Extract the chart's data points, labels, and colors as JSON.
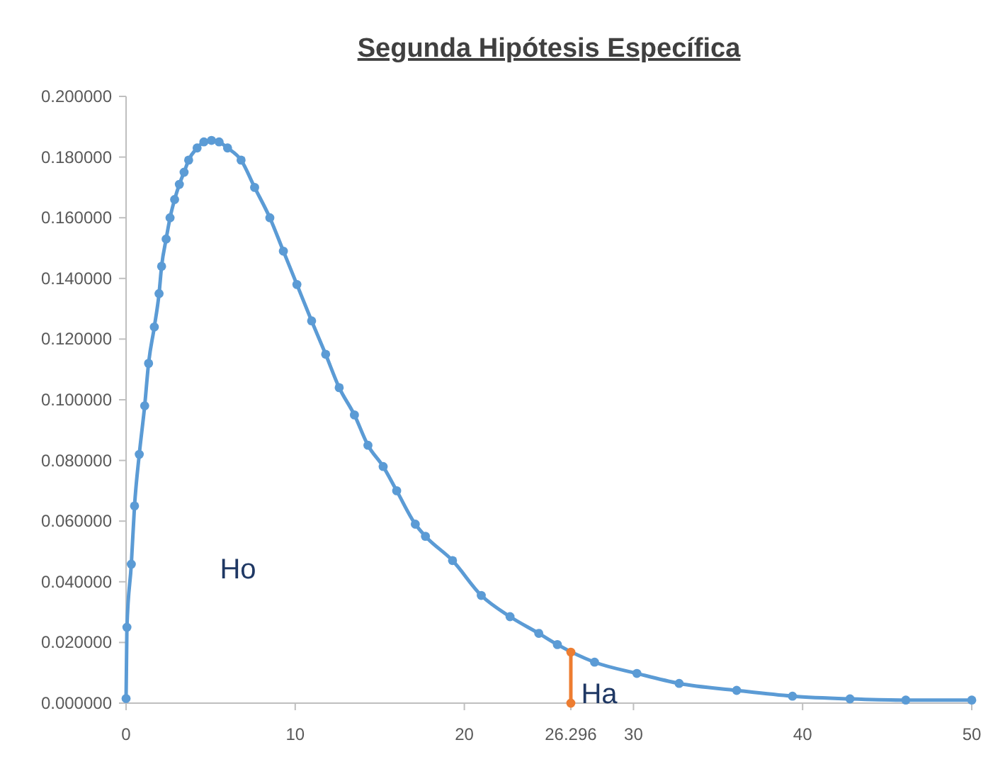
{
  "chart_data": {
    "type": "line",
    "title": "Segunda Hipótesis Específica",
    "marker": "circle",
    "grid": false,
    "xlim": [
      0,
      50
    ],
    "ylim": [
      0,
      0.2
    ],
    "xticks": [
      0,
      10,
      20,
      {
        "value": 26.296,
        "label": "26.296"
      },
      30,
      40,
      50
    ],
    "yticks": [
      {
        "value": 0,
        "label": "0.000000"
      },
      {
        "value": 0.02,
        "label": "0.020000"
      },
      {
        "value": 0.04,
        "label": "0.040000"
      },
      {
        "value": 0.06,
        "label": "0.060000"
      },
      {
        "value": 0.08,
        "label": "0.080000"
      },
      {
        "value": 0.1,
        "label": "0.100000"
      },
      {
        "value": 0.12,
        "label": "0.120000"
      },
      {
        "value": 0.14,
        "label": "0.140000"
      },
      {
        "value": 0.16,
        "label": "0.160000"
      },
      {
        "value": 0.18,
        "label": "0.180000"
      },
      {
        "value": 0.2,
        "label": "0.200000"
      }
    ],
    "series": [
      {
        "color": "#5b9bd5",
        "x": [
          0,
          0.05,
          0.31,
          0.5,
          0.78,
          1.1,
          1.33,
          1.67,
          1.95,
          2.1,
          2.37,
          2.6,
          2.87,
          3.15,
          3.43,
          3.7,
          4.2,
          4.6,
          5.05,
          5.5,
          6,
          6.8,
          7.6,
          8.5,
          9.3,
          10.1,
          10.97,
          11.8,
          12.6,
          13.5,
          14.3,
          15.2,
          16,
          17.1,
          17.7,
          19.3,
          21,
          22.7,
          24.4,
          25.5,
          27.7,
          30.2,
          32.7,
          36.1,
          39.4,
          42.8,
          46.1,
          50
        ],
        "values": [
          0.0015,
          0.025,
          0.0458,
          0.065,
          0.082,
          0.098,
          0.112,
          0.124,
          0.135,
          0.144,
          0.153,
          0.16,
          0.166,
          0.171,
          0.175,
          0.179,
          0.183,
          0.185,
          0.1855,
          0.185,
          0.183,
          0.179,
          0.17,
          0.16,
          0.149,
          0.138,
          0.126,
          0.115,
          0.104,
          0.095,
          0.085,
          0.078,
          0.07,
          0.059,
          0.055,
          0.047,
          0.0355,
          0.0285,
          0.023,
          0.0193,
          0.0135,
          0.0098,
          0.0065,
          0.0042,
          0.0023,
          0.0014,
          0.001,
          0.001
        ]
      },
      {
        "color": "#ed7d31",
        "x": [
          26.296,
          26.296
        ],
        "values": [
          0,
          0.0168
        ]
      }
    ],
    "annotations": [
      "Ho",
      "Ha"
    ]
  }
}
